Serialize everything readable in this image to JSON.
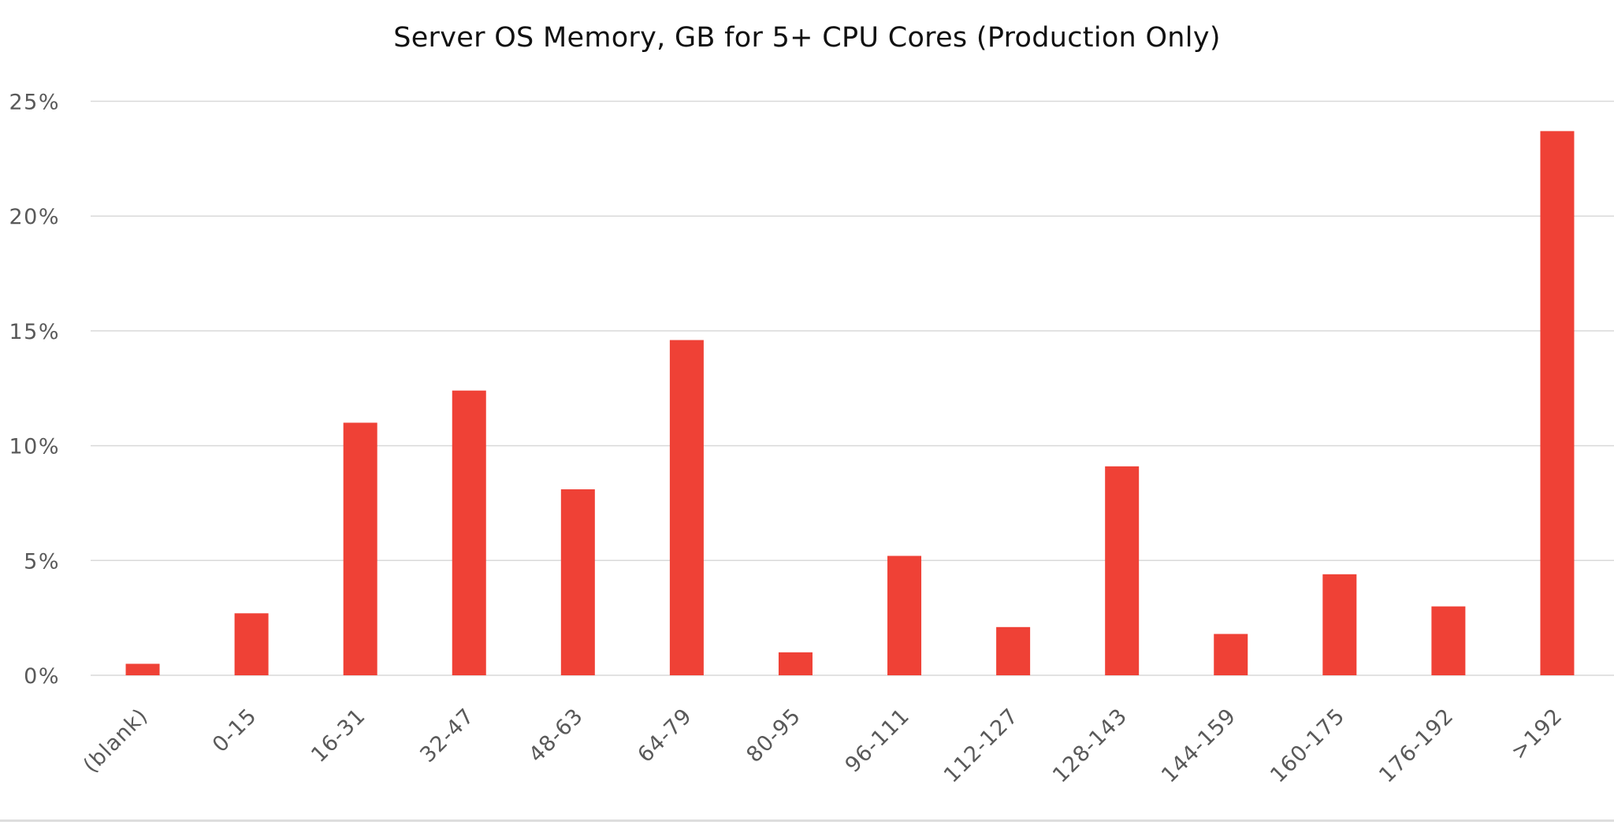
{
  "chart_data": {
    "type": "bar",
    "title": "Server OS Memory, GB for 5+ CPU Cores (Production Only)",
    "xlabel": "",
    "ylabel": "",
    "categories": [
      "(blank)",
      "0-15",
      "16-31",
      "32-47",
      "48-63",
      "64-79",
      "80-95",
      "96-111",
      "112-127",
      "128-143",
      "144-159",
      "160-175",
      "176-192",
      ">192"
    ],
    "values": [
      0.5,
      2.7,
      11.0,
      12.4,
      8.1,
      14.6,
      1.0,
      5.2,
      2.1,
      9.1,
      1.8,
      4.4,
      3.0,
      23.7
    ],
    "value_unit": "%",
    "ylim": [
      0,
      25
    ],
    "y_ticks": [
      0,
      5,
      10,
      15,
      20,
      25
    ],
    "y_tick_labels": [
      "0%",
      "5%",
      "10%",
      "15%",
      "20%",
      "25%"
    ],
    "grid": true,
    "legend": null,
    "bar_color": "#EF4136",
    "grid_color": "#D9D9D9",
    "tick_label_color": "#595959",
    "x_label_rotation": -45
  }
}
